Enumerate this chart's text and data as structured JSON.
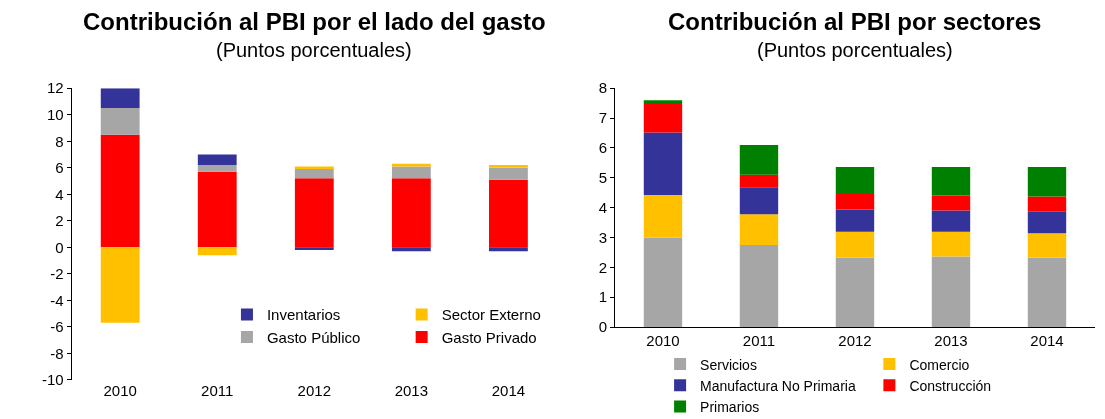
{
  "chart_data": [
    {
      "type": "bar",
      "stacked": true,
      "title": "Contribución al PBI por el lado del gasto",
      "subtitle": "(Puntos porcentuales)",
      "categories": [
        "2010",
        "2011",
        "2012",
        "2013",
        "2014"
      ],
      "ylim": [
        -10,
        12
      ],
      "yticks": [
        -10,
        -8,
        -6,
        -4,
        -2,
        0,
        2,
        4,
        6,
        8,
        10,
        12
      ],
      "grid": false,
      "legend": "bottom right",
      "series": [
        {
          "name": "Gasto Privado",
          "color": "#ff0000",
          "values": [
            8.5,
            5.7,
            5.2,
            5.2,
            5.1
          ]
        },
        {
          "name": "Gasto Público",
          "color": "#a6a6a6",
          "values": [
            2.0,
            0.5,
            0.7,
            0.9,
            0.9
          ]
        },
        {
          "name": "Sector Externo",
          "color": "#ffc000",
          "values": [
            -5.7,
            -0.6,
            0.2,
            0.2,
            0.2
          ]
        },
        {
          "name": "Inventarios",
          "color": "#333399",
          "values": [
            1.5,
            0.8,
            -0.2,
            -0.3,
            -0.3
          ]
        }
      ]
    },
    {
      "type": "bar",
      "stacked": true,
      "title": "Contribución al PBI por sectores",
      "subtitle": "(Puntos porcentuales)",
      "categories": [
        "2010",
        "2011",
        "2012",
        "2013",
        "2014"
      ],
      "ylim": [
        0,
        8
      ],
      "yticks": [
        0,
        1,
        2,
        3,
        4,
        5,
        6,
        7,
        8
      ],
      "grid": false,
      "legend": "bottom",
      "series": [
        {
          "name": "Servicios",
          "color": "#a6a6a6",
          "values": [
            3.0,
            2.75,
            2.32,
            2.36,
            2.32
          ]
        },
        {
          "name": "Comercio",
          "color": "#ffc000",
          "values": [
            1.42,
            1.03,
            0.87,
            0.83,
            0.82
          ]
        },
        {
          "name": "Manufactura No Primaria",
          "color": "#333399",
          "values": [
            2.1,
            0.9,
            0.75,
            0.71,
            0.72
          ]
        },
        {
          "name": "Construcción",
          "color": "#ff0000",
          "values": [
            0.95,
            0.42,
            0.52,
            0.51,
            0.51
          ]
        },
        {
          "name": "Primarios",
          "color": "#008000",
          "values": [
            0.13,
            1.0,
            0.9,
            0.95,
            0.99
          ]
        }
      ]
    }
  ]
}
